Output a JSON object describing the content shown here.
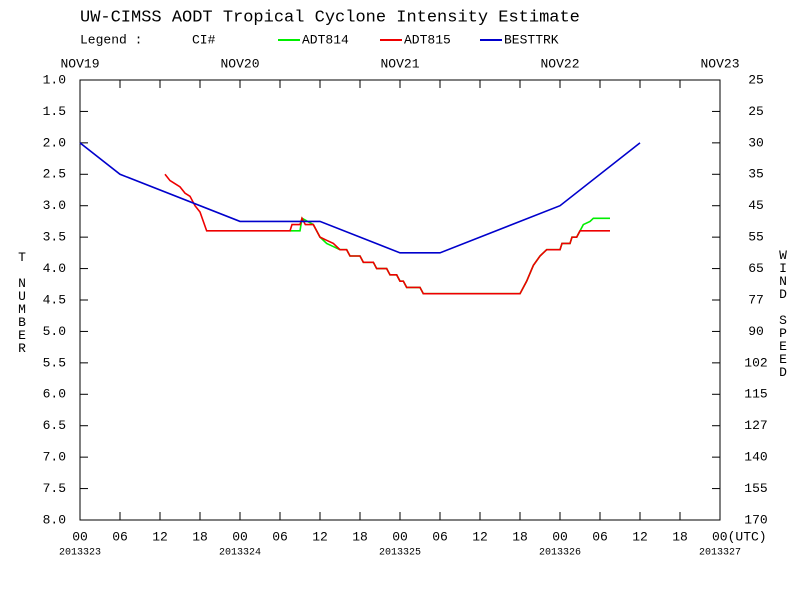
{
  "chart_data": {
    "type": "line",
    "title": "UW-CIMSS AODT Tropical Cyclone Intensity Estimate",
    "legend_label": "Legend :",
    "legend_note": "CI#",
    "ylabel": "T NUMBER",
    "y2label": "WIND SPEED",
    "xlim": [
      0,
      96
    ],
    "ylim": [
      8,
      1
    ],
    "yticks": [
      {
        "value": 1,
        "label": "1.0"
      },
      1.5,
      {
        "value": 2,
        "label": "2.0"
      },
      2.5,
      {
        "value": 3,
        "label": "3.0"
      },
      3.5,
      {
        "value": 4,
        "label": "4.0"
      },
      4.5,
      {
        "value": 5,
        "label": "5.0"
      },
      5.5,
      {
        "value": 6,
        "label": "6.0"
      },
      6.5,
      {
        "value": 7,
        "label": "7.0"
      },
      7.5,
      {
        "value": 8,
        "label": "8.0"
      }
    ],
    "wind_speed_labels": [
      25,
      25,
      30,
      35,
      45,
      55,
      65,
      77,
      90,
      102,
      115,
      127,
      140,
      155,
      170
    ],
    "xticks": [
      {
        "value": 0,
        "label": "00"
      },
      {
        "value": 6,
        "label": "06"
      },
      12,
      18,
      {
        "value": 24,
        "label": "00"
      },
      {
        "value": 30,
        "label": "06"
      },
      {
        "value": 36,
        "label": "12"
      },
      {
        "value": 42,
        "label": "18"
      },
      {
        "value": 48,
        "label": "00"
      },
      {
        "value": 54,
        "label": "06"
      },
      {
        "value": 60,
        "label": "12"
      },
      {
        "value": 66,
        "label": "18"
      },
      {
        "value": 72,
        "label": "00"
      },
      {
        "value": 78,
        "label": "06"
      },
      {
        "value": 84,
        "label": "12"
      },
      {
        "value": 90,
        "label": "18"
      },
      {
        "value": 96,
        "label": "00(UTC)"
      }
    ],
    "date_labels": [
      {
        "value": 0,
        "label": "2013323"
      },
      {
        "value": 24,
        "label": "2013324"
      },
      {
        "value": 48,
        "label": "2013325"
      },
      {
        "value": 72,
        "label": "2013326"
      },
      {
        "value": 96,
        "label": "2013327"
      }
    ],
    "top_labels": [
      {
        "value": 0,
        "label": "NOV19"
      },
      {
        "value": 24,
        "label": "NOV20"
      },
      {
        "value": 48,
        "label": "NOV21"
      },
      {
        "value": 72,
        "label": "NOV22"
      },
      {
        "value": 96,
        "label": "NOV23"
      }
    ],
    "series": [
      {
        "name": "ADT814",
        "color": "#00ee00",
        "x": [
          31.5,
          33,
          33.3,
          35,
          36,
          37,
          38,
          39,
          40,
          40.5,
          42,
          42.5,
          44,
          44.5,
          46,
          46.5,
          47.5,
          48,
          48.5,
          49,
          51,
          51.5,
          66,
          67,
          68,
          69,
          70,
          72,
          72.3,
          73.5,
          73.8,
          74.5,
          75.5,
          76.5,
          77,
          79.5
        ],
        "values": [
          3.4,
          3.4,
          3.2,
          3.3,
          3.5,
          3.6,
          3.65,
          3.7,
          3.7,
          3.8,
          3.8,
          3.9,
          3.9,
          4.0,
          4.0,
          4.1,
          4.1,
          4.2,
          4.2,
          4.3,
          4.3,
          4.4,
          4.4,
          4.2,
          3.95,
          3.8,
          3.7,
          3.7,
          3.6,
          3.6,
          3.5,
          3.5,
          3.3,
          3.25,
          3.2,
          3.2
        ]
      },
      {
        "name": "ADT815",
        "color": "#ee0000",
        "x": [
          12.75,
          13.5,
          14.25,
          15,
          15.75,
          16.5,
          17.25,
          18,
          19,
          31.5,
          31.8,
          33,
          33.3,
          33.8,
          35,
          36,
          37,
          38,
          39,
          40,
          40.5,
          42,
          42.5,
          44,
          44.5,
          46,
          46.5,
          47.5,
          48,
          48.5,
          49,
          51,
          51.5,
          66,
          67,
          68,
          69,
          70,
          72,
          72.3,
          73.5,
          73.8,
          74.5,
          75,
          79.5
        ],
        "values": [
          2.5,
          2.6,
          2.65,
          2.7,
          2.8,
          2.85,
          3.0,
          3.1,
          3.4,
          3.4,
          3.3,
          3.3,
          3.2,
          3.3,
          3.3,
          3.5,
          3.55,
          3.6,
          3.7,
          3.7,
          3.8,
          3.8,
          3.9,
          3.9,
          4.0,
          4.0,
          4.1,
          4.1,
          4.2,
          4.2,
          4.3,
          4.3,
          4.4,
          4.4,
          4.2,
          3.95,
          3.8,
          3.7,
          3.7,
          3.6,
          3.6,
          3.5,
          3.5,
          3.4,
          3.4
        ]
      },
      {
        "name": "BESTTRK",
        "color": "#0000cc",
        "x": [
          0,
          6,
          24,
          36,
          48,
          54,
          72,
          84
        ],
        "values": [
          2.0,
          2.5,
          3.25,
          3.25,
          3.75,
          3.75,
          3.0,
          2.0
        ]
      }
    ]
  }
}
